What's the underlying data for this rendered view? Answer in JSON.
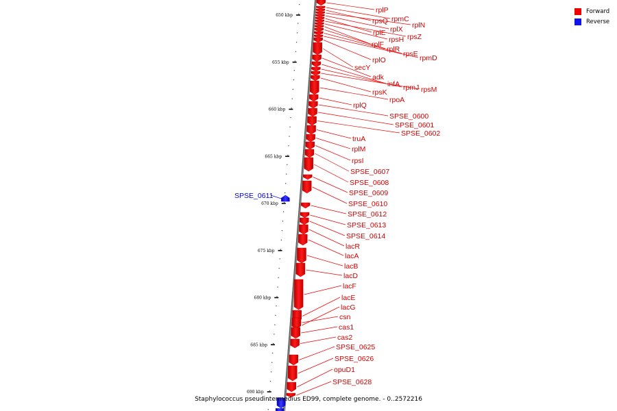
{
  "legend": {
    "forward_label": "Forward",
    "reverse_label": "Reverse",
    "forward_color": "#ee0000",
    "reverse_color": "#1111ee"
  },
  "footer": "Staphylococcus pseudintermedius ED99, complete genome. - 0..2572216",
  "ticks": [
    "650 kbp",
    "655 kbp",
    "660 kbp",
    "665 kbp",
    "670 kbp",
    "675 kbp",
    "680 kbp",
    "685 kbp",
    "690 kbp"
  ],
  "genes": [
    {
      "label": "rplP",
      "strand": "forward"
    },
    {
      "label": "rpmC",
      "strand": "forward"
    },
    {
      "label": "rpsQ",
      "strand": "forward"
    },
    {
      "label": "rplN",
      "strand": "forward"
    },
    {
      "label": "rplX",
      "strand": "forward"
    },
    {
      "label": "rplE",
      "strand": "forward"
    },
    {
      "label": "rpsZ",
      "strand": "forward"
    },
    {
      "label": "rpsH",
      "strand": "forward"
    },
    {
      "label": "rplF",
      "strand": "forward"
    },
    {
      "label": "rplR",
      "strand": "forward"
    },
    {
      "label": "rpsE",
      "strand": "forward"
    },
    {
      "label": "rpmD",
      "strand": "forward"
    },
    {
      "label": "rplO",
      "strand": "forward"
    },
    {
      "label": "secY",
      "strand": "forward"
    },
    {
      "label": "adk",
      "strand": "forward"
    },
    {
      "label": "infA",
      "strand": "forward"
    },
    {
      "label": "rpmJ",
      "strand": "forward"
    },
    {
      "label": "rpsM",
      "strand": "forward"
    },
    {
      "label": "rpsK",
      "strand": "forward"
    },
    {
      "label": "rpoA",
      "strand": "forward"
    },
    {
      "label": "rplQ",
      "strand": "forward"
    },
    {
      "label": "SPSE_0600",
      "strand": "forward"
    },
    {
      "label": "SPSE_0601",
      "strand": "forward"
    },
    {
      "label": "SPSE_0602",
      "strand": "forward"
    },
    {
      "label": "truA",
      "strand": "forward"
    },
    {
      "label": "rplM",
      "strand": "forward"
    },
    {
      "label": "rpsI",
      "strand": "forward"
    },
    {
      "label": "SPSE_0607",
      "strand": "forward"
    },
    {
      "label": "SPSE_0608",
      "strand": "forward"
    },
    {
      "label": "SPSE_0609",
      "strand": "forward"
    },
    {
      "label": "SPSE_0610",
      "strand": "forward"
    },
    {
      "label": "SPSE_0611",
      "strand": "reverse"
    },
    {
      "label": "SPSE_0612",
      "strand": "forward"
    },
    {
      "label": "SPSE_0613",
      "strand": "forward"
    },
    {
      "label": "SPSE_0614",
      "strand": "forward"
    },
    {
      "label": "lacR",
      "strand": "forward"
    },
    {
      "label": "lacA",
      "strand": "forward"
    },
    {
      "label": "lacB",
      "strand": "forward"
    },
    {
      "label": "lacD",
      "strand": "forward"
    },
    {
      "label": "lacF",
      "strand": "forward"
    },
    {
      "label": "lacE",
      "strand": "forward"
    },
    {
      "label": "lacG",
      "strand": "forward"
    },
    {
      "label": "csn",
      "strand": "forward"
    },
    {
      "label": "cas1",
      "strand": "forward"
    },
    {
      "label": "cas2",
      "strand": "forward"
    },
    {
      "label": "SPSE_0625",
      "strand": "forward"
    },
    {
      "label": "SPSE_0626",
      "strand": "forward"
    },
    {
      "label": "opuD1",
      "strand": "forward"
    },
    {
      "label": "SPSE_0628",
      "strand": "forward"
    }
  ]
}
